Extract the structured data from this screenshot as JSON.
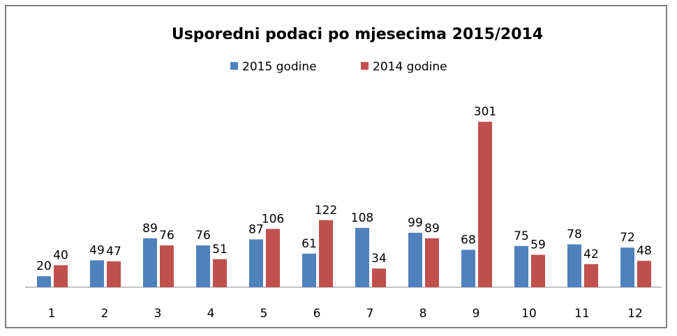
{
  "chart_data": {
    "type": "bar",
    "title": "Usporedni podaci po mjesecima 2015/2014",
    "categories": [
      "1",
      "2",
      "3",
      "4",
      "5",
      "6",
      "7",
      "8",
      "9",
      "10",
      "11",
      "12"
    ],
    "series": [
      {
        "name": "2015 godine",
        "color": "#4f81bd",
        "values": [
          20,
          49,
          89,
          76,
          87,
          61,
          108,
          99,
          68,
          75,
          78,
          72
        ]
      },
      {
        "name": "2014 godine",
        "color": "#c0504d",
        "values": [
          40,
          47,
          76,
          51,
          106,
          122,
          34,
          89,
          301,
          59,
          42,
          48
        ]
      }
    ],
    "ylim": [
      0,
      350
    ],
    "legend": "top"
  }
}
